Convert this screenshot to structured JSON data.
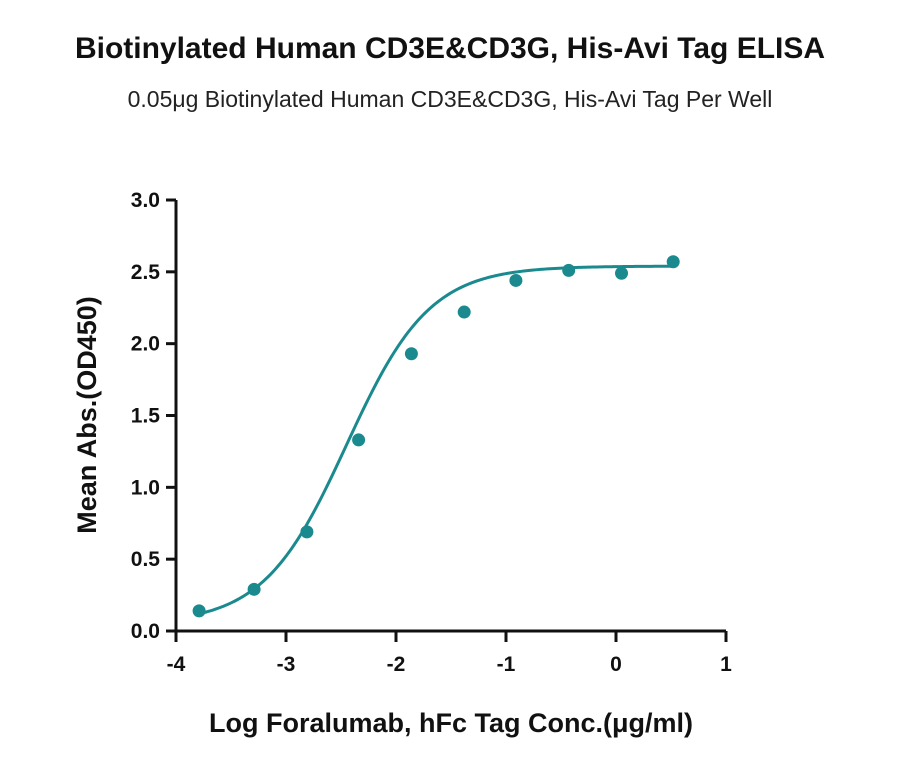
{
  "chart_data": {
    "type": "scatter",
    "title": "Biotinylated Human CD3E&CD3G, His-Avi Tag ELISA",
    "subtitle": "0.05μg Biotinylated Human CD3E&CD3G, His-Avi Tag Per Well",
    "xlabel": "Log Foralumab, hFc Tag Conc.(μg/ml)",
    "ylabel": "Mean Abs.(OD450)",
    "xlim": [
      -4,
      1
    ],
    "ylim": [
      0,
      3
    ],
    "xticks": [
      -4,
      -3,
      -2,
      -1,
      0,
      1
    ],
    "xtick_labels": [
      "-4",
      "-3",
      "-2",
      "-1",
      "0",
      "1"
    ],
    "yticks": [
      0,
      0.5,
      1,
      1.5,
      2,
      2.5,
      3
    ],
    "ytick_labels": [
      "0.0",
      "0.5",
      "1.0",
      "1.5",
      "2.0",
      "2.5",
      "3.0"
    ],
    "grid": false,
    "legend": "none",
    "color": "#1a8a8f",
    "series": [
      {
        "x": [
          -3.79,
          -3.29,
          -2.81,
          -2.34,
          -1.86,
          -1.38,
          -0.91,
          -0.43,
          0.05,
          0.52
        ],
        "y": [
          0.14,
          0.29,
          0.69,
          1.33,
          1.93,
          2.22,
          2.44,
          2.51,
          2.49,
          2.57
        ],
        "fit": "4PL",
        "fit_params": {
          "bottom": 0.05,
          "top": 2.54,
          "logEC50": -2.45,
          "hill": 1.15
        }
      }
    ]
  }
}
